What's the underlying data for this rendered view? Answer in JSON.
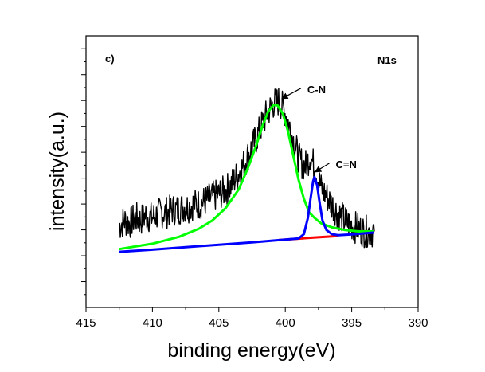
{
  "chart_data": {
    "type": "line",
    "panel_label": "c)",
    "title": "N1s",
    "xlabel": "binding energy(eV)",
    "ylabel": "intensity(a.u.)",
    "xlim": [
      415,
      390
    ],
    "x_reversed": true,
    "ylim": [
      0,
      100
    ],
    "y_tick_labels_shown": false,
    "x_ticks": [
      415,
      410,
      405,
      400,
      395,
      390
    ],
    "x_tick_labels": [
      "415",
      "410",
      "405",
      "400",
      "395",
      "390"
    ],
    "grid": false,
    "series": [
      {
        "color": "#000000",
        "values": [
          [
            412.5,
            30
          ],
          [
            412.1,
            32
          ],
          [
            411.7,
            31
          ],
          [
            411.3,
            33
          ],
          [
            410.9,
            32
          ],
          [
            410.5,
            34
          ],
          [
            410.1,
            33
          ],
          [
            409.7,
            34
          ],
          [
            409.3,
            35
          ],
          [
            408.9,
            35
          ],
          [
            408.5,
            36
          ],
          [
            408.1,
            36
          ],
          [
            407.7,
            37
          ],
          [
            407.3,
            37
          ],
          [
            406.9,
            38
          ],
          [
            406.5,
            38
          ],
          [
            406.1,
            39
          ],
          [
            405.7,
            40
          ],
          [
            405.3,
            41
          ],
          [
            404.9,
            42
          ],
          [
            404.5,
            43
          ],
          [
            404.1,
            45
          ],
          [
            403.7,
            48
          ],
          [
            403.3,
            51
          ],
          [
            402.9,
            55
          ],
          [
            402.5,
            59
          ],
          [
            402.1,
            63
          ],
          [
            401.7,
            68
          ],
          [
            401.3,
            72
          ],
          [
            400.9,
            75
          ],
          [
            400.5,
            76
          ],
          [
            400.1,
            73
          ],
          [
            399.7,
            67
          ],
          [
            399.3,
            60
          ],
          [
            398.9,
            54
          ],
          [
            398.5,
            52
          ],
          [
            398.1,
            56
          ],
          [
            397.7,
            50
          ],
          [
            397.3,
            44
          ],
          [
            396.9,
            41
          ],
          [
            396.5,
            38
          ],
          [
            396.1,
            35
          ],
          [
            395.7,
            33
          ],
          [
            395.3,
            31
          ],
          [
            394.9,
            30
          ],
          [
            394.5,
            29
          ],
          [
            394.1,
            28
          ],
          [
            393.7,
            28
          ],
          [
            393.3,
            28
          ]
        ]
      },
      {
        "color": "#00ff00",
        "values": [
          [
            412.5,
            21.5
          ],
          [
            410,
            23.5
          ],
          [
            408,
            26
          ],
          [
            406.5,
            29
          ],
          [
            405.5,
            32
          ],
          [
            404.5,
            36.5
          ],
          [
            403.5,
            43.5
          ],
          [
            402.8,
            51.5
          ],
          [
            402.2,
            59.5
          ],
          [
            401.7,
            67
          ],
          [
            401.3,
            72
          ],
          [
            400.9,
            74.5
          ],
          [
            400.6,
            74.5
          ],
          [
            400.2,
            71.5
          ],
          [
            399.8,
            65
          ],
          [
            399.4,
            56
          ],
          [
            399,
            47
          ],
          [
            398.6,
            40
          ],
          [
            398.2,
            35
          ],
          [
            397.8,
            33
          ],
          [
            397.3,
            31
          ],
          [
            396.5,
            29.5
          ],
          [
            395.5,
            28.5
          ],
          [
            394.5,
            28
          ],
          [
            393.3,
            28
          ]
        ]
      },
      {
        "color": "#ff0000",
        "values": [
          [
            400.5,
            24.8
          ],
          [
            398,
            25.7
          ],
          [
            396,
            26.3
          ]
        ]
      },
      {
        "color": "#0000ff",
        "values": [
          [
            412.5,
            20.5
          ],
          [
            410,
            21.3
          ],
          [
            407.5,
            22.2
          ],
          [
            405,
            23.1
          ],
          [
            402.5,
            24
          ],
          [
            400,
            25
          ],
          [
            399,
            25.4
          ],
          [
            398.6,
            27
          ],
          [
            398.3,
            33
          ],
          [
            398.1,
            40
          ],
          [
            397.9,
            46.5
          ],
          [
            397.8,
            48
          ],
          [
            397.6,
            45
          ],
          [
            397.4,
            38
          ],
          [
            397.2,
            32
          ],
          [
            396.9,
            28.5
          ],
          [
            396.5,
            27
          ],
          [
            396,
            26.6
          ],
          [
            395,
            26.9
          ],
          [
            394,
            27.3
          ],
          [
            393.3,
            27.6
          ]
        ]
      }
    ],
    "annotations": [
      {
        "text": "C-N",
        "x": 400.5,
        "y": 76
      },
      {
        "text": "C=N",
        "x": 398.0,
        "y": 49
      }
    ]
  }
}
